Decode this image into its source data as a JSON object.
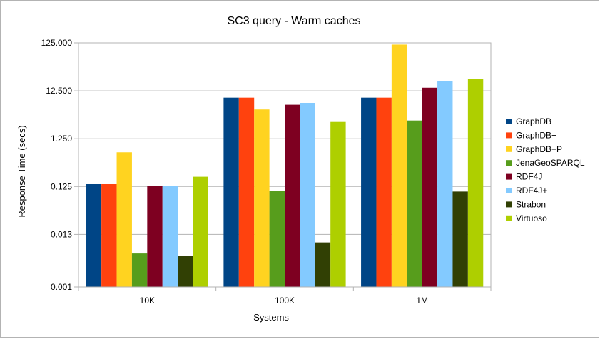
{
  "chart_data": {
    "type": "bar",
    "title": "SC3 query - Warm caches",
    "xlabel": "Systems",
    "ylabel": "Response Time (secs)",
    "yscale": "log",
    "ylim": [
      0.001,
      125
    ],
    "ytick_values": [
      0.001,
      0.0125,
      0.125,
      1.25,
      12.5,
      125
    ],
    "ytick_labels": [
      "0.001",
      "0.013",
      "0.125",
      "1.250",
      "12.500",
      "125.000"
    ],
    "categories": [
      "10K",
      "100K",
      "1M"
    ],
    "grid": "horizontal",
    "legend_position": "right",
    "series": [
      {
        "name": "GraphDB",
        "color": "#004586",
        "values": [
          0.14,
          9.0,
          9.0
        ]
      },
      {
        "name": "GraphDB+",
        "color": "#ff420e",
        "values": [
          0.14,
          9.0,
          9.0
        ]
      },
      {
        "name": "GraphDB+P",
        "color": "#ffd320",
        "values": [
          0.65,
          5.1,
          115
        ]
      },
      {
        "name": "JenaGeoSPARQL",
        "color": "#579d1c",
        "values": [
          0.005,
          0.1,
          3.0
        ]
      },
      {
        "name": "RDF4J",
        "color": "#7e0021",
        "values": [
          0.13,
          6.4,
          14.5
        ]
      },
      {
        "name": "RDF4J+",
        "color": "#83caff",
        "values": [
          0.13,
          7.0,
          20.0
        ]
      },
      {
        "name": "Strabon",
        "color": "#314004",
        "values": [
          0.0044,
          0.0085,
          0.098
        ]
      },
      {
        "name": "Virtuoso",
        "color": "#aecf00",
        "values": [
          0.2,
          2.8,
          22.0
        ]
      }
    ]
  }
}
